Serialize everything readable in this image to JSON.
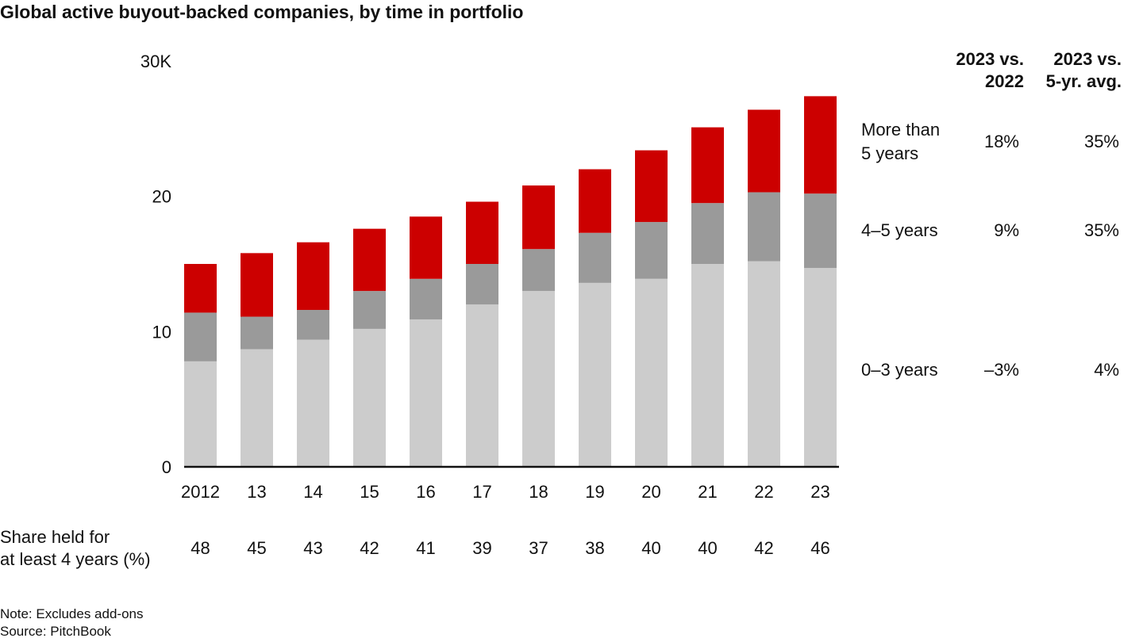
{
  "title": "Global active buyout-backed companies, by time in portfolio",
  "chart_data": {
    "type": "bar",
    "stacked": true,
    "categories": [
      "2012",
      "13",
      "14",
      "15",
      "16",
      "17",
      "18",
      "19",
      "20",
      "21",
      "22",
      "23"
    ],
    "series": [
      {
        "name": "0–3 years",
        "color": "#cccccc",
        "values": [
          7.8,
          8.7,
          9.4,
          10.2,
          10.9,
          12.0,
          13.0,
          13.6,
          13.9,
          15.0,
          15.2,
          14.7
        ]
      },
      {
        "name": "4–5 years",
        "color": "#9a9a9a",
        "values": [
          3.6,
          2.4,
          2.2,
          2.8,
          3.0,
          3.0,
          3.1,
          3.7,
          4.2,
          4.5,
          5.1,
          5.5
        ]
      },
      {
        "name": "More than 5 years",
        "color": "#cc0000",
        "values": [
          3.6,
          4.7,
          5.0,
          4.6,
          4.6,
          4.6,
          4.7,
          4.7,
          5.3,
          5.6,
          6.1,
          7.2
        ]
      }
    ],
    "ylim": [
      0,
      30
    ],
    "yticks": [
      {
        "value": 0,
        "label": "0"
      },
      {
        "value": 10,
        "label": "10"
      },
      {
        "value": 20,
        "label": "20"
      },
      {
        "value": 30,
        "label": "30K"
      }
    ],
    "grid": false,
    "xlabel": "",
    "ylabel": ""
  },
  "share_row": {
    "label_line1": "Share held for",
    "label_line2": "at least 4 years (%)",
    "values": [
      "48",
      "45",
      "43",
      "42",
      "41",
      "39",
      "37",
      "38",
      "40",
      "40",
      "42",
      "46"
    ]
  },
  "table": {
    "headers": [
      {
        "line1": "2023 vs.",
        "line2": "2022"
      },
      {
        "line1": "2023 vs.",
        "line2": "5-yr. avg."
      }
    ],
    "rows": [
      {
        "label_line1": "More than",
        "label_line2": "5 years",
        "vs_2022": "18%",
        "vs_5yr": "35%"
      },
      {
        "label_line1": "4–5 years",
        "label_line2": "",
        "vs_2022": "9%",
        "vs_5yr": "35%"
      },
      {
        "label_line1": "0–3 years",
        "label_line2": "",
        "vs_2022": "–3%",
        "vs_5yr": "4%"
      }
    ]
  },
  "notes": {
    "note": "Note: Excludes add-ons",
    "source": "Source: PitchBook"
  }
}
